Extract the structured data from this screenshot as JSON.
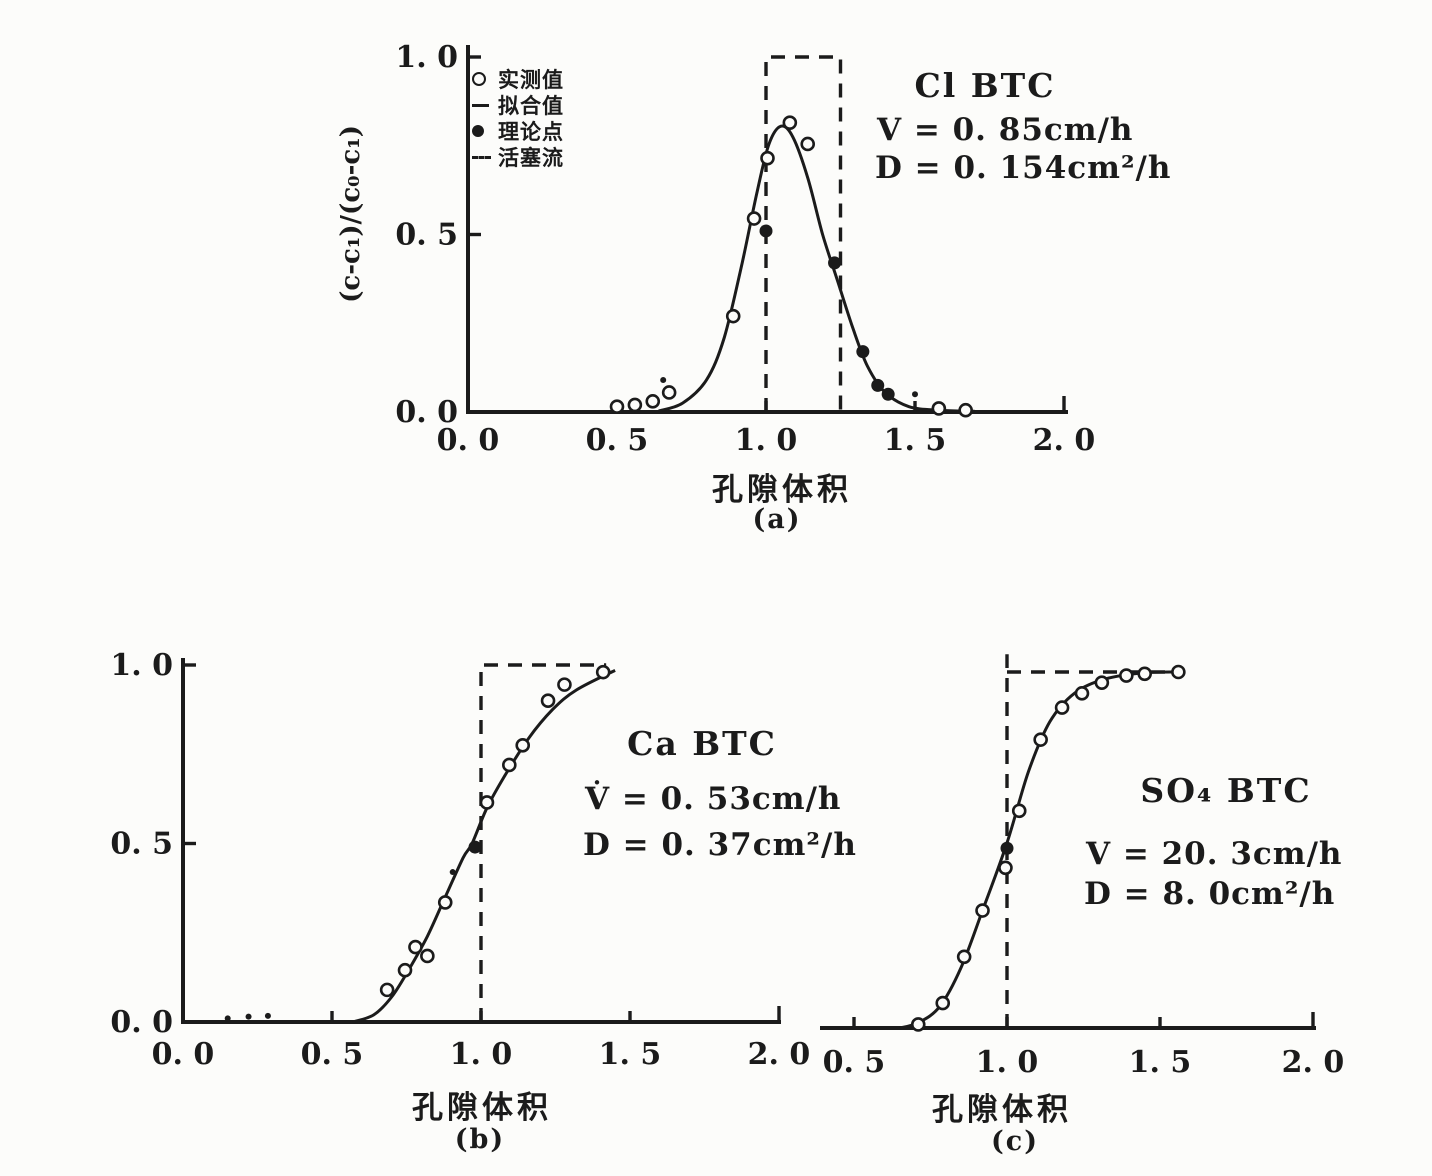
{
  "figure": {
    "background": "#fcfcfa",
    "ink": "#1b1b1b"
  },
  "legend": {
    "items": [
      {
        "marker": "open-circle",
        "label": "实测值"
      },
      {
        "marker": "solid-line",
        "label": "拟合值"
      },
      {
        "marker": "filled-circle",
        "label": "理论点"
      },
      {
        "marker": "dashed-line",
        "label": "活塞流"
      }
    ]
  },
  "chart_data": [
    {
      "id": "a",
      "type": "line+scatter",
      "title": "Cl BTC",
      "annotations": [
        "V = 0. 85cm/h",
        "D = 0. 154cm²/h"
      ],
      "xlabel": "孔隙体积",
      "panel_tag": "(a)",
      "ylabel": "(c-c₁)/(c₀-c₁)",
      "xlim": [
        0,
        2
      ],
      "ylim": [
        0,
        1
      ],
      "grid": false,
      "xticks": [
        {
          "v": 0,
          "label": "0. 0"
        },
        {
          "v": 0.5,
          "label": "0. 5"
        },
        {
          "v": 1,
          "label": "1. 0"
        },
        {
          "v": 1.5,
          "label": "1. 5"
        },
        {
          "v": 2,
          "label": "2. 0"
        }
      ],
      "yticks": [
        {
          "v": 0,
          "label": "0. 0"
        },
        {
          "v": 0.5,
          "label": "0. 5"
        },
        {
          "v": 1,
          "label": "1. 0"
        }
      ],
      "series": {
        "measured_points": [
          [
            0.5,
            0.015
          ],
          [
            0.56,
            0.02
          ],
          [
            0.62,
            0.03
          ],
          [
            0.675,
            0.055
          ],
          [
            0.89,
            0.27
          ],
          [
            0.96,
            0.545
          ],
          [
            1.005,
            0.715
          ],
          [
            1.08,
            0.815
          ],
          [
            1.14,
            0.755
          ],
          [
            1.58,
            0.01
          ],
          [
            1.67,
            0.005
          ]
        ],
        "theory_points": [
          [
            1.0,
            0.51
          ],
          [
            1.23,
            0.42
          ],
          [
            1.325,
            0.17
          ],
          [
            1.375,
            0.075
          ],
          [
            1.41,
            0.05
          ]
        ],
        "small_marks": [
          [
            0.655,
            0.09
          ],
          [
            1.5,
            0.05
          ]
        ],
        "fit_curve": [
          [
            0.64,
            0.003
          ],
          [
            0.72,
            0.025
          ],
          [
            0.8,
            0.09
          ],
          [
            0.86,
            0.21
          ],
          [
            0.92,
            0.42
          ],
          [
            0.97,
            0.62
          ],
          [
            1.01,
            0.755
          ],
          [
            1.05,
            0.805
          ],
          [
            1.09,
            0.775
          ],
          [
            1.14,
            0.66
          ],
          [
            1.19,
            0.5
          ],
          [
            1.24,
            0.37
          ],
          [
            1.29,
            0.24
          ],
          [
            1.34,
            0.13
          ],
          [
            1.4,
            0.055
          ],
          [
            1.48,
            0.015
          ],
          [
            1.58,
            0.005
          ],
          [
            1.7,
            0.002
          ]
        ],
        "piston_flow": [
          [
            [
              1.0,
              0
            ],
            [
              1.0,
              1.0
            ],
            [
              1.25,
              1.0
            ],
            [
              1.25,
              0
            ]
          ]
        ]
      }
    },
    {
      "id": "b",
      "type": "line+scatter",
      "title": "Ca BTC",
      "annotations": [
        "V̇ = 0. 53cm/h",
        "D = 0. 37cm²/h"
      ],
      "xlabel": "孔隙体积",
      "panel_tag": "(b)",
      "ylabel": "",
      "xlim": [
        0,
        2
      ],
      "ylim": [
        0,
        1
      ],
      "grid": false,
      "xticks": [
        {
          "v": 0,
          "label": "0. 0"
        },
        {
          "v": 0.5,
          "label": "0. 5"
        },
        {
          "v": 1,
          "label": "1. 0"
        },
        {
          "v": 1.5,
          "label": "1. 5"
        },
        {
          "v": 2,
          "label": "2. 0"
        }
      ],
      "yticks": [
        {
          "v": 0,
          "label": "0. 0"
        },
        {
          "v": 0.5,
          "label": "0. 5"
        },
        {
          "v": 1,
          "label": "1. 0"
        }
      ],
      "series": {
        "measured_points": [
          [
            0.685,
            0.09
          ],
          [
            0.745,
            0.145
          ],
          [
            0.78,
            0.21
          ],
          [
            0.82,
            0.185
          ],
          [
            0.88,
            0.335
          ],
          [
            1.02,
            0.615
          ],
          [
            1.095,
            0.72
          ],
          [
            1.14,
            0.775
          ],
          [
            1.225,
            0.9
          ],
          [
            1.28,
            0.945
          ],
          [
            1.41,
            0.98
          ]
        ],
        "theory_points": [
          [
            0.98,
            0.49
          ]
        ],
        "small_marks": [
          [
            0.15,
            0.01
          ],
          [
            0.22,
            0.015
          ],
          [
            0.285,
            0.017
          ],
          [
            0.905,
            0.42
          ]
        ],
        "fit_curve": [
          [
            0.57,
            0.0
          ],
          [
            0.64,
            0.02
          ],
          [
            0.7,
            0.07
          ],
          [
            0.76,
            0.15
          ],
          [
            0.82,
            0.24
          ],
          [
            0.88,
            0.35
          ],
          [
            0.94,
            0.46
          ],
          [
            0.97,
            0.5
          ],
          [
            1.02,
            0.6
          ],
          [
            1.08,
            0.69
          ],
          [
            1.16,
            0.795
          ],
          [
            1.24,
            0.875
          ],
          [
            1.32,
            0.93
          ],
          [
            1.45,
            0.985
          ]
        ],
        "piston_flow": [
          [
            [
              1.0,
              0
            ],
            [
              1.0,
              1.0
            ],
            [
              1.42,
              1.0
            ]
          ]
        ]
      }
    },
    {
      "id": "c",
      "type": "line+scatter",
      "title": "SO₄ BTC",
      "annotations": [
        "V = 20. 3cm/h",
        "D = 8. 0cm²/h"
      ],
      "xlabel": "孔隙体积",
      "panel_tag": "(c)",
      "ylabel": "",
      "xlim": [
        0.4,
        2
      ],
      "ylim": [
        0,
        1
      ],
      "grid": false,
      "xticks": [
        {
          "v": 0.5,
          "label": "0. 5"
        },
        {
          "v": 1,
          "label": "1. 0"
        },
        {
          "v": 1.5,
          "label": "1. 5"
        },
        {
          "v": 2,
          "label": "2. 0"
        }
      ],
      "yticks": [],
      "series": {
        "measured_points": [
          [
            0.71,
            0.01
          ],
          [
            0.79,
            0.07
          ],
          [
            0.86,
            0.2
          ],
          [
            0.92,
            0.33
          ],
          [
            0.995,
            0.45
          ],
          [
            1.04,
            0.61
          ],
          [
            1.11,
            0.81
          ],
          [
            1.18,
            0.9
          ],
          [
            1.245,
            0.94
          ],
          [
            1.31,
            0.97
          ],
          [
            1.39,
            0.99
          ],
          [
            1.45,
            0.995
          ],
          [
            1.56,
            1.0
          ]
        ],
        "theory_points": [
          [
            1.0,
            0.505
          ]
        ],
        "small_marks": [],
        "fit_curve": [
          [
            0.65,
            0.0
          ],
          [
            0.71,
            0.015
          ],
          [
            0.78,
            0.06
          ],
          [
            0.85,
            0.17
          ],
          [
            0.92,
            0.33
          ],
          [
            1.0,
            0.52
          ],
          [
            1.07,
            0.72
          ],
          [
            1.14,
            0.86
          ],
          [
            1.22,
            0.94
          ],
          [
            1.32,
            0.98
          ],
          [
            1.45,
            0.998
          ],
          [
            1.58,
            1.0
          ]
        ],
        "piston_flow": [
          [
            [
              1.0,
              0
            ],
            [
              1.0,
              1.05
            ]
          ],
          [
            [
              1.0,
              1.0
            ],
            [
              1.56,
              1.0
            ]
          ]
        ]
      }
    }
  ]
}
